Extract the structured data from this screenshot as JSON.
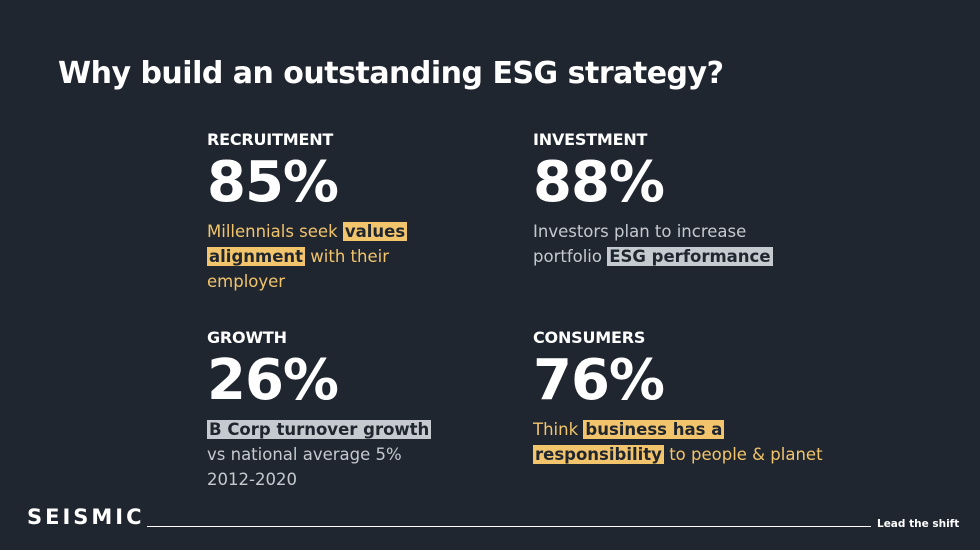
{
  "header": {
    "title": "Why build an outstanding ESG strategy?"
  },
  "stats": [
    {
      "label": "RECRUITMENT",
      "figure": "85%",
      "tone": "yellow",
      "description": [
        {
          "text": "Millennials seek "
        },
        {
          "text": "values alignment",
          "highlight": true
        },
        {
          "text": " with their employer"
        }
      ]
    },
    {
      "label": "INVESTMENT",
      "figure": "88%",
      "tone": "grey",
      "description": [
        {
          "text": "Investors plan to increase portfolio "
        },
        {
          "text": "ESG performance",
          "highlight": true
        }
      ]
    },
    {
      "label": "GROWTH",
      "figure": "26%",
      "tone": "grey",
      "description": [
        {
          "text": "B Corp turnover growth",
          "highlight": true
        },
        {
          "text": " vs national average 5% 2012-2020"
        }
      ]
    },
    {
      "label": "CONSUMERS",
      "figure": "76%",
      "tone": "yellow",
      "description": [
        {
          "text": "Think "
        },
        {
          "text": "business has a responsibility",
          "highlight": true
        },
        {
          "text": " to people & planet"
        }
      ]
    }
  ],
  "footer": {
    "brand": "SEISMIC",
    "tagline": "Lead the shift"
  }
}
